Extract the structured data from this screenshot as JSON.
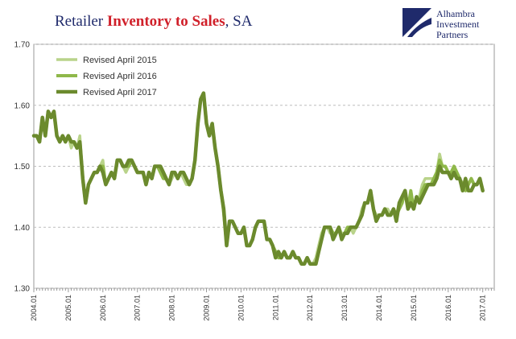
{
  "title": {
    "part1": "Retailer ",
    "part2": "Inventory to Sales",
    "part3": ", SA"
  },
  "logo": {
    "line1": "Alhambra",
    "line2": "Investment",
    "line3": "Partners"
  },
  "colors": {
    "title_main": "#1f2a6b",
    "title_accent": "#d0202a",
    "logo": "#1f2a6b",
    "grid": "#bdbdbd"
  },
  "chart_data": {
    "type": "line",
    "ylim": [
      1.3,
      1.7
    ],
    "yticks": [
      "1.30",
      "1.40",
      "1.50",
      "1.60",
      "1.70"
    ],
    "xlim": [
      "2004-01",
      "2017-05"
    ],
    "xticks": [
      "2004.01",
      "2005.01",
      "2006.01",
      "2007.01",
      "2008.01",
      "2009.01",
      "2010.01",
      "2011.01",
      "2012.01",
      "2013.01",
      "2014.01",
      "2015.01",
      "2016.01",
      "2017.01"
    ],
    "grid": "horizontal dashed",
    "legend_position": "top-left",
    "series": [
      {
        "name": "Revised April 2015",
        "color": "#b9d38a",
        "start": "2004-01",
        "values": [
          1.55,
          1.55,
          1.54,
          1.58,
          1.55,
          1.59,
          1.58,
          1.59,
          1.55,
          1.54,
          1.55,
          1.54,
          1.55,
          1.53,
          1.54,
          1.53,
          1.55,
          1.48,
          1.44,
          1.47,
          1.48,
          1.49,
          1.49,
          1.5,
          1.51,
          1.47,
          1.48,
          1.49,
          1.48,
          1.51,
          1.51,
          1.5,
          1.49,
          1.5,
          1.51,
          1.5,
          1.49,
          1.49,
          1.49,
          1.47,
          1.49,
          1.48,
          1.5,
          1.5,
          1.49,
          1.48,
          1.48,
          1.47,
          1.48,
          1.49,
          1.48,
          1.49,
          1.48,
          1.47,
          1.47,
          1.48,
          1.51,
          1.57,
          1.61,
          1.62,
          1.57,
          1.55,
          1.57,
          1.53,
          1.5,
          1.46,
          1.42,
          1.37,
          1.41,
          1.41,
          1.4,
          1.39,
          1.39,
          1.4,
          1.37,
          1.37,
          1.38,
          1.4,
          1.41,
          1.41,
          1.41,
          1.38,
          1.38,
          1.37,
          1.36,
          1.35,
          1.35,
          1.36,
          1.35,
          1.35,
          1.36,
          1.35,
          1.35,
          1.34,
          1.34,
          1.35,
          1.34,
          1.34,
          1.35,
          1.37,
          1.39,
          1.4,
          1.4,
          1.39,
          1.39,
          1.39,
          1.4,
          1.39,
          1.39,
          1.4,
          1.4,
          1.39,
          1.4,
          1.41,
          1.43,
          1.44,
          1.44,
          1.45,
          1.43,
          1.42,
          1.42,
          1.42,
          1.43,
          1.43,
          1.42,
          1.43,
          1.42,
          1.44,
          1.45,
          1.46,
          1.43,
          1.46,
          1.43,
          1.45,
          1.45,
          1.47,
          1.48,
          1.48,
          1.48,
          1.48,
          1.49,
          1.52,
          1.5,
          1.5,
          1.49,
          1.49,
          1.5,
          1.49,
          1.48,
          1.47,
          1.46,
          1.47,
          1.48,
          1.47
        ]
      },
      {
        "name": "Revised April 2016",
        "color": "#8fb84a",
        "start": "2004-01",
        "values": [
          1.55,
          1.55,
          1.54,
          1.58,
          1.55,
          1.59,
          1.58,
          1.59,
          1.55,
          1.54,
          1.55,
          1.54,
          1.55,
          1.54,
          1.54,
          1.53,
          1.54,
          1.48,
          1.44,
          1.47,
          1.48,
          1.49,
          1.49,
          1.5,
          1.5,
          1.47,
          1.48,
          1.49,
          1.48,
          1.51,
          1.51,
          1.5,
          1.5,
          1.5,
          1.51,
          1.5,
          1.49,
          1.49,
          1.49,
          1.47,
          1.49,
          1.48,
          1.5,
          1.5,
          1.49,
          1.48,
          1.48,
          1.47,
          1.49,
          1.49,
          1.48,
          1.49,
          1.49,
          1.48,
          1.47,
          1.48,
          1.51,
          1.57,
          1.61,
          1.62,
          1.57,
          1.55,
          1.57,
          1.53,
          1.5,
          1.46,
          1.43,
          1.37,
          1.41,
          1.41,
          1.4,
          1.39,
          1.39,
          1.4,
          1.37,
          1.37,
          1.38,
          1.4,
          1.41,
          1.41,
          1.41,
          1.38,
          1.38,
          1.37,
          1.36,
          1.35,
          1.35,
          1.36,
          1.35,
          1.35,
          1.36,
          1.35,
          1.35,
          1.34,
          1.34,
          1.35,
          1.34,
          1.34,
          1.34,
          1.36,
          1.38,
          1.4,
          1.4,
          1.4,
          1.39,
          1.39,
          1.4,
          1.38,
          1.39,
          1.4,
          1.4,
          1.4,
          1.4,
          1.41,
          1.42,
          1.44,
          1.44,
          1.46,
          1.43,
          1.41,
          1.42,
          1.42,
          1.43,
          1.42,
          1.42,
          1.43,
          1.42,
          1.43,
          1.44,
          1.46,
          1.43,
          1.46,
          1.43,
          1.45,
          1.44,
          1.46,
          1.47,
          1.47,
          1.47,
          1.48,
          1.49,
          1.51,
          1.5,
          1.5,
          1.49,
          1.49,
          1.5,
          1.49,
          1.48,
          1.47,
          1.46,
          1.47,
          1.48,
          1.47
        ]
      },
      {
        "name": "Revised April 2017",
        "color": "#6b8a2d",
        "start": "2004-01",
        "values": [
          1.55,
          1.55,
          1.54,
          1.58,
          1.55,
          1.59,
          1.58,
          1.59,
          1.55,
          1.54,
          1.55,
          1.54,
          1.55,
          1.54,
          1.54,
          1.53,
          1.54,
          1.48,
          1.44,
          1.47,
          1.48,
          1.49,
          1.49,
          1.5,
          1.49,
          1.47,
          1.48,
          1.49,
          1.48,
          1.51,
          1.51,
          1.5,
          1.5,
          1.51,
          1.51,
          1.5,
          1.49,
          1.49,
          1.49,
          1.47,
          1.49,
          1.48,
          1.5,
          1.5,
          1.5,
          1.49,
          1.48,
          1.47,
          1.49,
          1.49,
          1.48,
          1.49,
          1.49,
          1.48,
          1.47,
          1.48,
          1.51,
          1.57,
          1.61,
          1.62,
          1.57,
          1.55,
          1.57,
          1.53,
          1.5,
          1.46,
          1.43,
          1.37,
          1.41,
          1.41,
          1.4,
          1.39,
          1.39,
          1.4,
          1.37,
          1.37,
          1.38,
          1.4,
          1.41,
          1.41,
          1.41,
          1.38,
          1.38,
          1.37,
          1.35,
          1.36,
          1.35,
          1.36,
          1.35,
          1.35,
          1.36,
          1.35,
          1.35,
          1.34,
          1.34,
          1.35,
          1.34,
          1.34,
          1.34,
          1.36,
          1.38,
          1.4,
          1.4,
          1.4,
          1.38,
          1.39,
          1.4,
          1.38,
          1.39,
          1.39,
          1.4,
          1.4,
          1.4,
          1.41,
          1.42,
          1.44,
          1.44,
          1.46,
          1.43,
          1.41,
          1.42,
          1.42,
          1.43,
          1.42,
          1.42,
          1.43,
          1.41,
          1.44,
          1.45,
          1.46,
          1.43,
          1.44,
          1.43,
          1.45,
          1.44,
          1.45,
          1.46,
          1.47,
          1.47,
          1.47,
          1.48,
          1.5,
          1.49,
          1.49,
          1.49,
          1.48,
          1.49,
          1.48,
          1.48,
          1.46,
          1.48,
          1.46,
          1.46,
          1.47,
          1.47,
          1.48,
          1.46
        ]
      }
    ]
  }
}
